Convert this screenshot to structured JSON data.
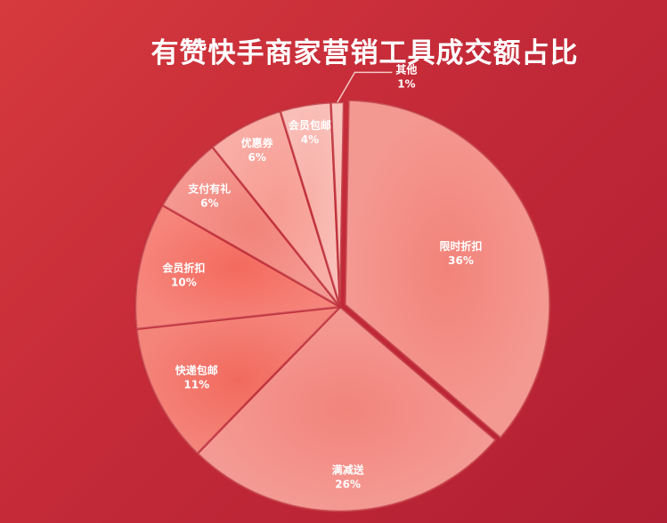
{
  "chart_data": {
    "type": "pie",
    "title": "有赞快手商家营销工具成交额占比",
    "slices": [
      {
        "label": "限时折扣",
        "value": 36,
        "display": "36%",
        "color": "#f2837a"
      },
      {
        "label": "满减送",
        "value": 26,
        "display": "26%",
        "color": "#f2847c"
      },
      {
        "label": "快递包邮",
        "value": 11,
        "display": "11%",
        "color": "#f26a5e"
      },
      {
        "label": "会员折扣",
        "value": 10,
        "display": "10%",
        "color": "#f46a5e"
      },
      {
        "label": "支付有礼",
        "value": 6,
        "display": "6%",
        "color": "#f2837a"
      },
      {
        "label": "优惠券",
        "value": 6,
        "display": "6%",
        "color": "#f79c92"
      },
      {
        "label": "会员包邮",
        "value": 4,
        "display": "4%",
        "color": "#f8b0a8"
      },
      {
        "label": "其他",
        "value": 1,
        "display": "1%",
        "color": "#f9b8b0"
      }
    ]
  }
}
